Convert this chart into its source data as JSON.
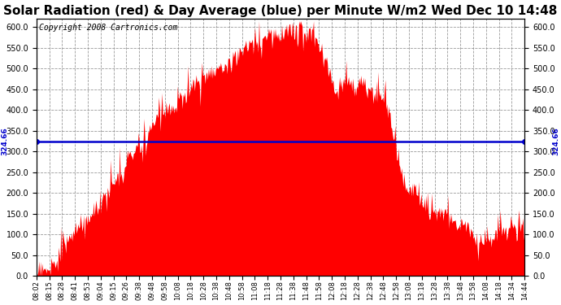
{
  "title": "Solar Radiation (red) & Day Average (blue) per Minute W/m2 Wed Dec 10 14:48",
  "copyright": "Copyright 2008 Cartronics.com",
  "avg_value": 324.66,
  "ylim": [
    0,
    620
  ],
  "yticks": [
    0.0,
    50.0,
    100.0,
    150.0,
    200.0,
    250.0,
    300.0,
    350.0,
    400.0,
    450.0,
    500.0,
    550.0,
    600.0
  ],
  "fill_color": "#FF0000",
  "line_color": "#0000CC",
  "avg_label": "324.66",
  "background_color": "#FFFFFF",
  "plot_background": "#FFFFFF",
  "title_fontsize": 11,
  "copyright_fontsize": 7,
  "x_labels": [
    "08:02",
    "08:15",
    "08:28",
    "08:41",
    "08:53",
    "09:04",
    "09:15",
    "09:26",
    "09:38",
    "09:48",
    "09:58",
    "10:08",
    "10:18",
    "10:28",
    "10:38",
    "10:48",
    "10:58",
    "11:08",
    "11:18",
    "11:28",
    "11:38",
    "11:48",
    "11:58",
    "12:08",
    "12:18",
    "12:28",
    "12:38",
    "12:48",
    "12:58",
    "13:08",
    "13:18",
    "13:28",
    "13:38",
    "13:48",
    "13:58",
    "14:08",
    "14:18",
    "14:34",
    "14:44"
  ]
}
